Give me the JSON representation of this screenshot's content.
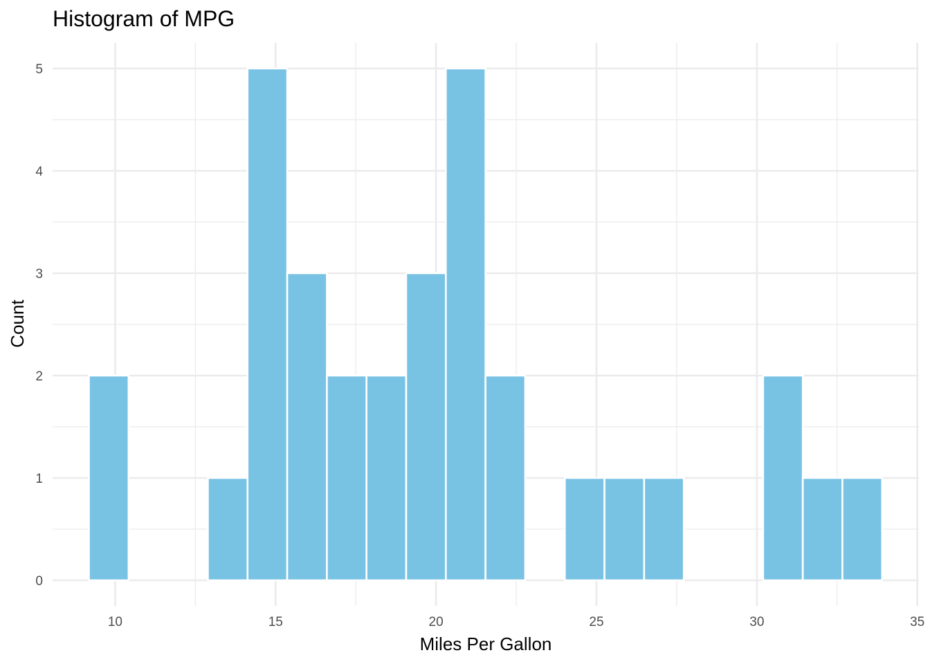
{
  "chart_data": {
    "type": "bar",
    "subtype": "histogram",
    "title": "Histogram of MPG",
    "xlabel": "Miles Per Gallon",
    "ylabel": "Count",
    "bin_width": 1.236,
    "bins": [
      {
        "center": 9.8,
        "count": 2
      },
      {
        "center": 11.036,
        "count": 0
      },
      {
        "center": 12.272,
        "count": 0
      },
      {
        "center": 13.508,
        "count": 1
      },
      {
        "center": 14.744,
        "count": 5
      },
      {
        "center": 15.98,
        "count": 3
      },
      {
        "center": 17.216,
        "count": 2
      },
      {
        "center": 18.452,
        "count": 2
      },
      {
        "center": 19.688,
        "count": 3
      },
      {
        "center": 20.924,
        "count": 5
      },
      {
        "center": 22.16,
        "count": 2
      },
      {
        "center": 23.396,
        "count": 0
      },
      {
        "center": 24.632,
        "count": 1
      },
      {
        "center": 25.868,
        "count": 1
      },
      {
        "center": 27.104,
        "count": 1
      },
      {
        "center": 28.34,
        "count": 0
      },
      {
        "center": 29.576,
        "count": 0
      },
      {
        "center": 30.812,
        "count": 2
      },
      {
        "center": 32.048,
        "count": 1
      },
      {
        "center": 33.284,
        "count": 1
      }
    ],
    "xlim": [
      8.05,
      35.05
    ],
    "ylim": [
      -0.25,
      5.25
    ],
    "x_ticks": [
      10,
      15,
      20,
      25,
      30,
      35
    ],
    "y_ticks": [
      0,
      1,
      2,
      3,
      4,
      5
    ],
    "grid": true,
    "bar_color": "#78c2e4",
    "bar_outline_color": "#ffffff",
    "background": "#ffffff",
    "grid_color": "#ebebeb"
  }
}
